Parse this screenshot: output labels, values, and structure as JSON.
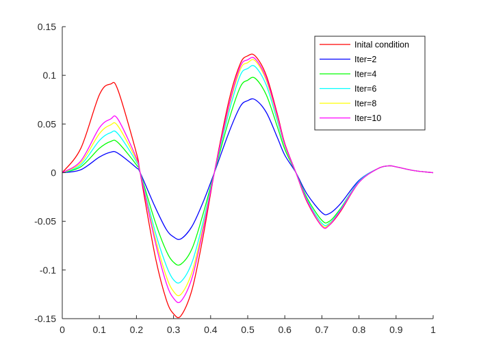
{
  "chart_data": {
    "type": "line",
    "title": "",
    "xlabel": "",
    "ylabel": "",
    "xlim": [
      0,
      1
    ],
    "ylim": [
      -0.15,
      0.15
    ],
    "xticks": [
      0,
      0.1,
      0.2,
      0.3,
      0.4,
      0.5,
      0.6,
      0.7,
      0.8,
      0.9,
      1
    ],
    "xtick_labels": [
      "0",
      "0.1",
      "0.2",
      "0.3",
      "0.4",
      "0.5",
      "0.6",
      "0.7",
      "0.8",
      "0.9",
      "1"
    ],
    "yticks": [
      -0.15,
      -0.1,
      -0.05,
      0,
      0.05,
      0.1,
      0.15
    ],
    "ytick_labels": [
      "-0.15",
      "-0.1",
      "-0.05",
      "0",
      "0.05",
      "0.1",
      "0.15"
    ],
    "grid": false,
    "box": "axes-left-bottom",
    "legend_position": "top-right",
    "x": [
      0,
      0.05,
      0.1,
      0.13,
      0.15,
      0.2,
      0.21,
      0.25,
      0.28,
      0.3,
      0.32,
      0.35,
      0.38,
      0.41,
      0.45,
      0.48,
      0.5,
      0.52,
      0.55,
      0.58,
      0.6,
      0.63,
      0.66,
      0.7,
      0.72,
      0.75,
      0.8,
      0.85,
      0.88,
      0.9,
      0.95,
      1
    ],
    "series": [
      {
        "name": "Inital condition",
        "color": "#ff0000",
        "values": [
          0,
          0.025,
          0.08,
          0.091,
          0.085,
          0.02,
          0,
          -0.085,
          -0.13,
          -0.145,
          -0.147,
          -0.12,
          -0.065,
          0,
          0.075,
          0.112,
          0.12,
          0.12,
          0.1,
          0.06,
          0.03,
          0,
          -0.03,
          -0.055,
          -0.054,
          -0.04,
          -0.01,
          0.004,
          0.007,
          0.006,
          0.002,
          0
        ]
      },
      {
        "name": "Iter=2",
        "color": "#0000ff",
        "values": [
          0,
          0.003,
          0.016,
          0.021,
          0.02,
          0.005,
          0,
          -0.035,
          -0.058,
          -0.066,
          -0.068,
          -0.055,
          -0.03,
          0,
          0.042,
          0.068,
          0.074,
          0.075,
          0.062,
          0.036,
          0.018,
          0,
          -0.022,
          -0.041,
          -0.042,
          -0.032,
          -0.008,
          0.004,
          0.007,
          0.006,
          0.002,
          0
        ]
      },
      {
        "name": "Iter=4",
        "color": "#00ff00",
        "values": [
          0,
          0.006,
          0.025,
          0.032,
          0.031,
          0.008,
          0,
          -0.05,
          -0.08,
          -0.092,
          -0.094,
          -0.078,
          -0.042,
          0,
          0.055,
          0.088,
          0.095,
          0.097,
          0.08,
          0.047,
          0.024,
          0,
          -0.026,
          -0.049,
          -0.05,
          -0.037,
          -0.009,
          0.004,
          0.007,
          0.006,
          0.002,
          0
        ]
      },
      {
        "name": "Iter=6",
        "color": "#00ffff",
        "values": [
          0,
          0.008,
          0.033,
          0.041,
          0.04,
          0.011,
          0,
          -0.06,
          -0.095,
          -0.11,
          -0.112,
          -0.092,
          -0.05,
          0,
          0.063,
          0.1,
          0.107,
          0.109,
          0.09,
          0.053,
          0.027,
          0,
          -0.028,
          -0.052,
          -0.052,
          -0.038,
          -0.009,
          0.004,
          0.007,
          0.006,
          0.002,
          0
        ]
      },
      {
        "name": "Iter=8",
        "color": "#ffff00",
        "values": [
          0,
          0.01,
          0.04,
          0.049,
          0.048,
          0.013,
          0,
          -0.066,
          -0.106,
          -0.122,
          -0.125,
          -0.102,
          -0.055,
          0,
          0.068,
          0.106,
          0.113,
          0.115,
          0.095,
          0.056,
          0.028,
          0,
          -0.029,
          -0.054,
          -0.053,
          -0.039,
          -0.01,
          0.004,
          0.007,
          0.006,
          0.002,
          0
        ]
      },
      {
        "name": "Iter=10",
        "color": "#ff00ff",
        "values": [
          0,
          0.012,
          0.046,
          0.055,
          0.055,
          0.015,
          0,
          -0.07,
          -0.113,
          -0.129,
          -0.132,
          -0.108,
          -0.058,
          0,
          0.07,
          0.109,
          0.116,
          0.117,
          0.097,
          0.058,
          0.029,
          0,
          -0.029,
          -0.055,
          -0.054,
          -0.039,
          -0.01,
          0.004,
          0.007,
          0.006,
          0.002,
          0
        ]
      }
    ]
  }
}
